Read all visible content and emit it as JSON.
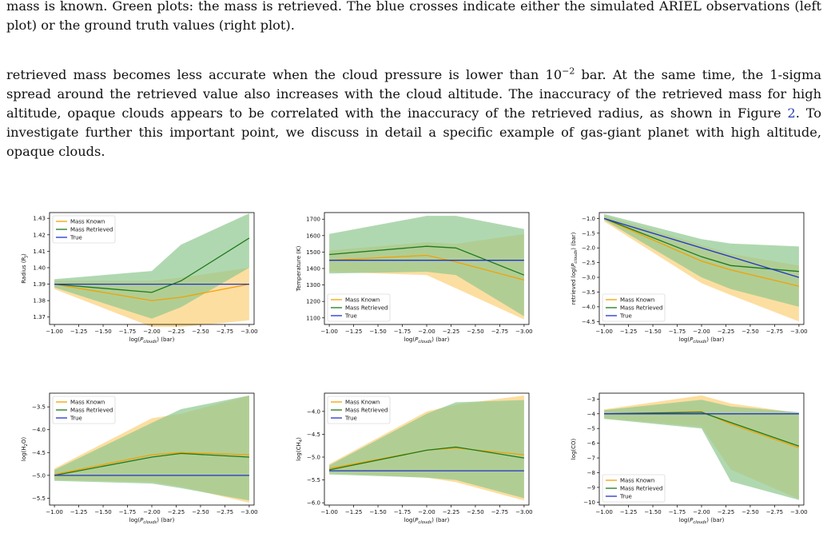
{
  "caption": {
    "lines": [
      "mass is known. Green plots: the mass is retrieved. The blue crosses indicate either the simulated ARIEL observations (left",
      "plot) or the ground truth values (right plot)."
    ]
  },
  "paragraph": {
    "line1_pre": "retrieved mass becomes less accurate when the cloud pressure is lower than 10",
    "line1_sup": "−2",
    "line1_post": " bar. At the same time, the 1-sigma",
    "line2": "spread around the retrieved value also increases with the cloud altitude. The inaccuracy of the retrieved mass for high",
    "line3_pre": "altitude, opaque clouds appears to be correlated with the inaccuracy of the retrieved radius, as shown in Figure ",
    "line3_ref": "2",
    "line3_post": ". To",
    "line4": "investigate further this important point, we discuss in detail a specific example of gas-giant planet with high altitude,",
    "line5": "opaque clouds."
  },
  "colors": {
    "known": "#f5a000",
    "known_fill": "#fcd68a",
    "retrieved": "#1e7a1e",
    "retrieved_fill": "#8fc88f",
    "true": "#2233cc"
  },
  "chart_data": [
    {
      "type": "line",
      "xlabel": "log(P_clouds) (bar)",
      "ylabel": "Radius (R_J)",
      "x": [
        -1.0,
        -2.0,
        -2.3,
        -3.0
      ],
      "xlim": [
        -0.95,
        -3.05
      ],
      "xticks": [
        "−1.00",
        "−1.25",
        "−1.50",
        "−1.75",
        "−2.00",
        "−2.25",
        "−2.50",
        "−2.75",
        "−3.00"
      ],
      "ylim": [
        1.3655,
        1.4335
      ],
      "yticks": [
        1.37,
        1.38,
        1.39,
        1.4,
        1.41,
        1.42,
        1.43
      ],
      "legend_position": "top-left",
      "series": [
        {
          "name": "Mass Known",
          "values": [
            1.39,
            1.38,
            1.382,
            1.39
          ],
          "lower": [
            1.387,
            1.364,
            1.364,
            1.368
          ],
          "upper": [
            1.392,
            1.392,
            1.394,
            1.4
          ]
        },
        {
          "name": "Mass Retrieved",
          "values": [
            1.39,
            1.385,
            1.392,
            1.418
          ],
          "lower": [
            1.388,
            1.369,
            1.376,
            1.4
          ],
          "upper": [
            1.393,
            1.398,
            1.414,
            1.433
          ]
        },
        {
          "name": "True",
          "values": [
            1.39,
            1.39,
            1.39,
            1.39
          ]
        }
      ]
    },
    {
      "type": "line",
      "xlabel": "log(P_clouds) (bar)",
      "ylabel": "Temperature (K)",
      "x": [
        -1.0,
        -2.0,
        -2.3,
        -3.0
      ],
      "xlim": [
        -0.95,
        -3.05
      ],
      "xticks": [
        "−1.00",
        "−1.25",
        "−1.50",
        "−1.75",
        "−2.00",
        "−2.25",
        "−2.50",
        "−2.75",
        "−3.00"
      ],
      "ylim": [
        1060,
        1740
      ],
      "yticks": [
        1100,
        1200,
        1300,
        1400,
        1500,
        1600,
        1700
      ],
      "legend_position": "bottom-left",
      "series": [
        {
          "name": "Mass Known",
          "values": [
            1450,
            1480,
            1440,
            1330
          ],
          "lower": [
            1380,
            1360,
            1280,
            1090
          ],
          "upper": [
            1510,
            1560,
            1550,
            1610
          ]
        },
        {
          "name": "Mass Retrieved",
          "values": [
            1485,
            1535,
            1525,
            1360
          ],
          "lower": [
            1370,
            1380,
            1360,
            1110
          ],
          "upper": [
            1610,
            1720,
            1720,
            1640
          ]
        },
        {
          "name": "True",
          "values": [
            1450,
            1450,
            1450,
            1450
          ]
        }
      ]
    },
    {
      "type": "line",
      "xlabel": "log(P_clouds) (bar)",
      "ylabel": "retrieved log(P_clouds) (bar)",
      "x": [
        -1.0,
        -2.0,
        -2.3,
        -3.0
      ],
      "xlim": [
        -0.95,
        -3.05
      ],
      "xticks": [
        "−1.00",
        "−1.25",
        "−1.50",
        "−1.75",
        "−2.00",
        "−2.25",
        "−2.50",
        "−2.75",
        "−3.00"
      ],
      "ylim": [
        -4.6,
        -0.8
      ],
      "yticks": [
        -1.0,
        -1.5,
        -2.0,
        -2.5,
        -3.0,
        -3.5,
        -4.0,
        -4.5
      ],
      "legend_position": "bottom-left",
      "series": [
        {
          "name": "Mass Known",
          "values": [
            -1.0,
            -2.45,
            -2.75,
            -3.3
          ],
          "lower": [
            -1.1,
            -3.2,
            -3.6,
            -4.5
          ],
          "upper": [
            -0.9,
            -1.9,
            -2.2,
            -2.6
          ]
        },
        {
          "name": "Mass Retrieved",
          "values": [
            -1.0,
            -2.3,
            -2.6,
            -2.8
          ],
          "lower": [
            -1.05,
            -3.0,
            -3.4,
            -4.0
          ],
          "upper": [
            -0.85,
            -1.7,
            -1.85,
            -1.95
          ]
        },
        {
          "name": "True",
          "values": [
            -1.0,
            -2.0,
            -2.3,
            -3.0
          ]
        }
      ]
    },
    {
      "type": "line",
      "xlabel": "log(P_clouds) (bar)",
      "ylabel": "log(H2O)",
      "x": [
        -1.0,
        -2.0,
        -2.3,
        -3.0
      ],
      "xlim": [
        -0.95,
        -3.05
      ],
      "xticks": [
        "−1.00",
        "−1.25",
        "−1.50",
        "−1.75",
        "−2.00",
        "−2.25",
        "−2.50",
        "−2.75",
        "−3.00"
      ],
      "ylim": [
        -5.65,
        -3.2
      ],
      "yticks": [
        -3.5,
        -4.0,
        -4.5,
        -5.0,
        -5.5
      ],
      "legend_position": "top-left",
      "series": [
        {
          "name": "Mass Known",
          "values": [
            -4.98,
            -4.55,
            -4.5,
            -4.55
          ],
          "lower": [
            -5.1,
            -5.15,
            -5.25,
            -5.6
          ],
          "upper": [
            -4.85,
            -3.75,
            -3.65,
            -3.25
          ]
        },
        {
          "name": "Mass Retrieved",
          "values": [
            -5.0,
            -4.6,
            -4.52,
            -4.6
          ],
          "lower": [
            -5.12,
            -5.18,
            -5.28,
            -5.55
          ],
          "upper": [
            -4.88,
            -3.85,
            -3.55,
            -3.25
          ]
        },
        {
          "name": "True",
          "values": [
            -5.0,
            -5.0,
            -5.0,
            -5.0
          ]
        }
      ]
    },
    {
      "type": "line",
      "xlabel": "log(P_clouds) (bar)",
      "ylabel": "log(CH4)",
      "x": [
        -1.0,
        -2.0,
        -2.3,
        -3.0
      ],
      "xlim": [
        -0.95,
        -3.05
      ],
      "xticks": [
        "−1.00",
        "−1.25",
        "−1.50",
        "−1.75",
        "−2.00",
        "−2.25",
        "−2.50",
        "−2.75",
        "−3.00"
      ],
      "ylim": [
        -6.05,
        -3.6
      ],
      "yticks": [
        -4.0,
        -4.5,
        -5.0,
        -5.5,
        -6.0
      ],
      "legend_position": "top-left",
      "series": [
        {
          "name": "Mass Known",
          "values": [
            -5.25,
            -4.85,
            -4.8,
            -4.95
          ],
          "lower": [
            -5.35,
            -5.45,
            -5.55,
            -5.95
          ],
          "upper": [
            -5.15,
            -4.0,
            -3.85,
            -3.65
          ]
        },
        {
          "name": "Mass Retrieved",
          "values": [
            -5.28,
            -4.85,
            -4.78,
            -5.02
          ],
          "lower": [
            -5.38,
            -5.45,
            -5.5,
            -5.9
          ],
          "upper": [
            -5.18,
            -4.05,
            -3.8,
            -3.75
          ]
        },
        {
          "name": "True",
          "values": [
            -5.3,
            -5.3,
            -5.3,
            -5.3
          ]
        }
      ]
    },
    {
      "type": "line",
      "xlabel": "log(P_clouds) (bar)",
      "ylabel": "log(CO)",
      "x": [
        -1.0,
        -2.0,
        -2.3,
        -3.0
      ],
      "xlim": [
        -0.95,
        -3.05
      ],
      "xticks": [
        "−1.00",
        "−1.25",
        "−1.50",
        "−1.75",
        "−2.00",
        "−2.25",
        "−2.50",
        "−2.75",
        "−3.00"
      ],
      "ylim": [
        -10.2,
        -2.6
      ],
      "yticks": [
        -3,
        -4,
        -5,
        -6,
        -7,
        -8,
        -9,
        -10
      ],
      "legend_position": "bottom-left",
      "series": [
        {
          "name": "Mass Known",
          "values": [
            -4.0,
            -3.85,
            -4.7,
            -6.3
          ],
          "lower": [
            -4.3,
            -4.9,
            -7.8,
            -9.8
          ],
          "upper": [
            -3.7,
            -2.75,
            -3.3,
            -3.95
          ]
        },
        {
          "name": "Mass Retrieved",
          "values": [
            -4.0,
            -3.9,
            -4.6,
            -6.2
          ],
          "lower": [
            -4.35,
            -5.0,
            -8.6,
            -9.85
          ],
          "upper": [
            -3.75,
            -3.05,
            -3.5,
            -3.9
          ]
        },
        {
          "name": "True",
          "values": [
            -4.0,
            -4.0,
            -4.0,
            -4.0
          ]
        }
      ]
    }
  ]
}
